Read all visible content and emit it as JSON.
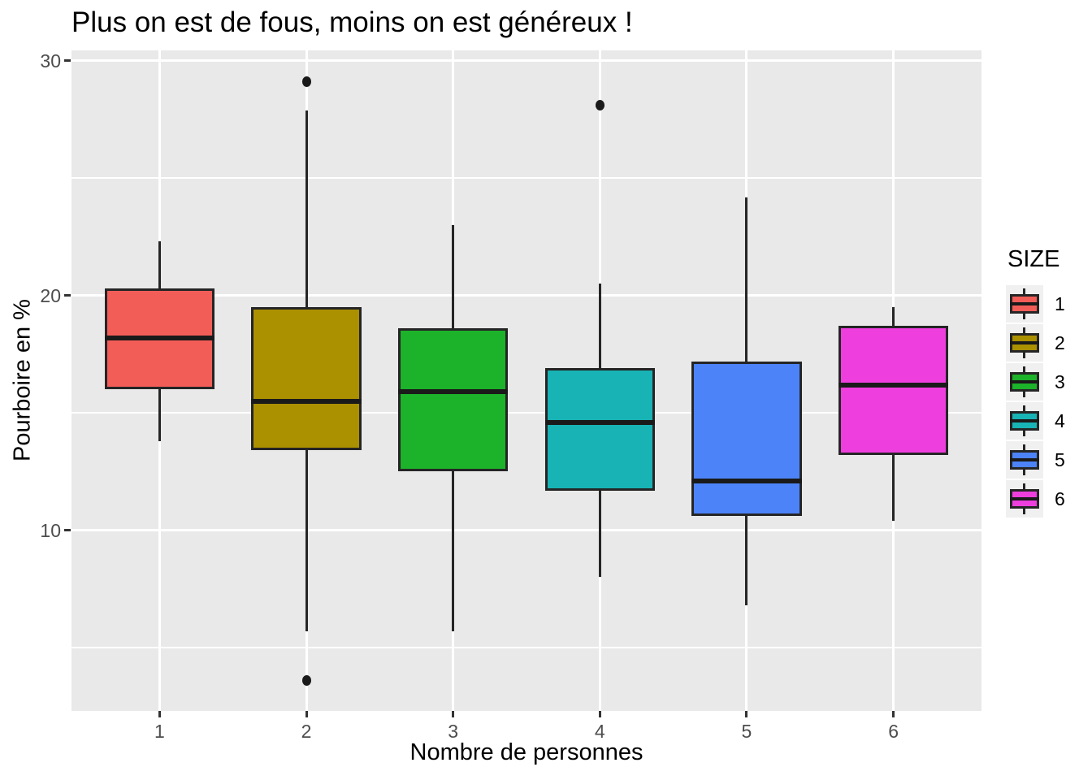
{
  "title": "Plus on est de fous, moins on est généreux !",
  "axes": {
    "x_title": "Nombre de personnes",
    "y_title": "Pourboire en %",
    "x_tick_labels": [
      "1",
      "2",
      "3",
      "4",
      "5",
      "6"
    ],
    "y_tick_labels": [
      "10",
      "20",
      "30"
    ]
  },
  "legend": {
    "title": "SIZE",
    "entries": [
      {
        "label": "1",
        "color": "#F25D58"
      },
      {
        "label": "2",
        "color": "#AB9000"
      },
      {
        "label": "3",
        "color": "#1CB229"
      },
      {
        "label": "4",
        "color": "#18B3B5"
      },
      {
        "label": "5",
        "color": "#4C83F8"
      },
      {
        "label": "6",
        "color": "#EE3FDE"
      }
    ]
  },
  "chart_data": {
    "type": "boxplot",
    "title": "Plus on est de fous, moins on est généreux !",
    "xlabel": "Nombre de personnes",
    "ylabel": "Pourboire en %",
    "categories": [
      "1",
      "2",
      "3",
      "4",
      "5",
      "6"
    ],
    "ylim": [
      2.3,
      30.45
    ],
    "y_major_ticks": [
      10,
      20,
      30
    ],
    "y_minor_gridlines": [
      5,
      15,
      25
    ],
    "grid": true,
    "legend_title": "SIZE",
    "legend_position": "right",
    "series": [
      {
        "category": "1",
        "color": "#F25D58",
        "whisker_low": 13.8,
        "q1": 16.0,
        "median": 18.2,
        "q3": 20.3,
        "whisker_high": 22.3,
        "outliers": []
      },
      {
        "category": "2",
        "color": "#AB9000",
        "whisker_low": 5.7,
        "q1": 13.4,
        "median": 15.5,
        "q3": 19.5,
        "whisker_high": 27.9,
        "outliers": [
          29.1,
          3.6
        ]
      },
      {
        "category": "3",
        "color": "#1CB229",
        "whisker_low": 5.7,
        "q1": 12.5,
        "median": 15.9,
        "q3": 18.6,
        "whisker_high": 23.0,
        "outliers": []
      },
      {
        "category": "4",
        "color": "#18B3B5",
        "whisker_low": 8.0,
        "q1": 11.7,
        "median": 14.6,
        "q3": 16.9,
        "whisker_high": 20.5,
        "outliers": [
          28.1
        ]
      },
      {
        "category": "5",
        "color": "#4C83F8",
        "whisker_low": 6.8,
        "q1": 10.6,
        "median": 12.1,
        "q3": 17.2,
        "whisker_high": 24.2,
        "outliers": []
      },
      {
        "category": "6",
        "color": "#EE3FDE",
        "whisker_low": 10.4,
        "q1": 13.2,
        "median": 16.2,
        "q3": 18.7,
        "whisker_high": 19.5,
        "outliers": []
      }
    ]
  },
  "colors": {
    "page_bg": "#FFFFFF",
    "panel_bg": "#E9E9E9",
    "gridline": "#FFFFFF",
    "box_border": "#252525",
    "median": "#1A1A1A",
    "outlier": "#1A1A1A",
    "tick_mark": "#333333",
    "axis_text": "#4D4D4D",
    "title_text": "#000000",
    "legend_key_bg": "#F0F0F0"
  }
}
